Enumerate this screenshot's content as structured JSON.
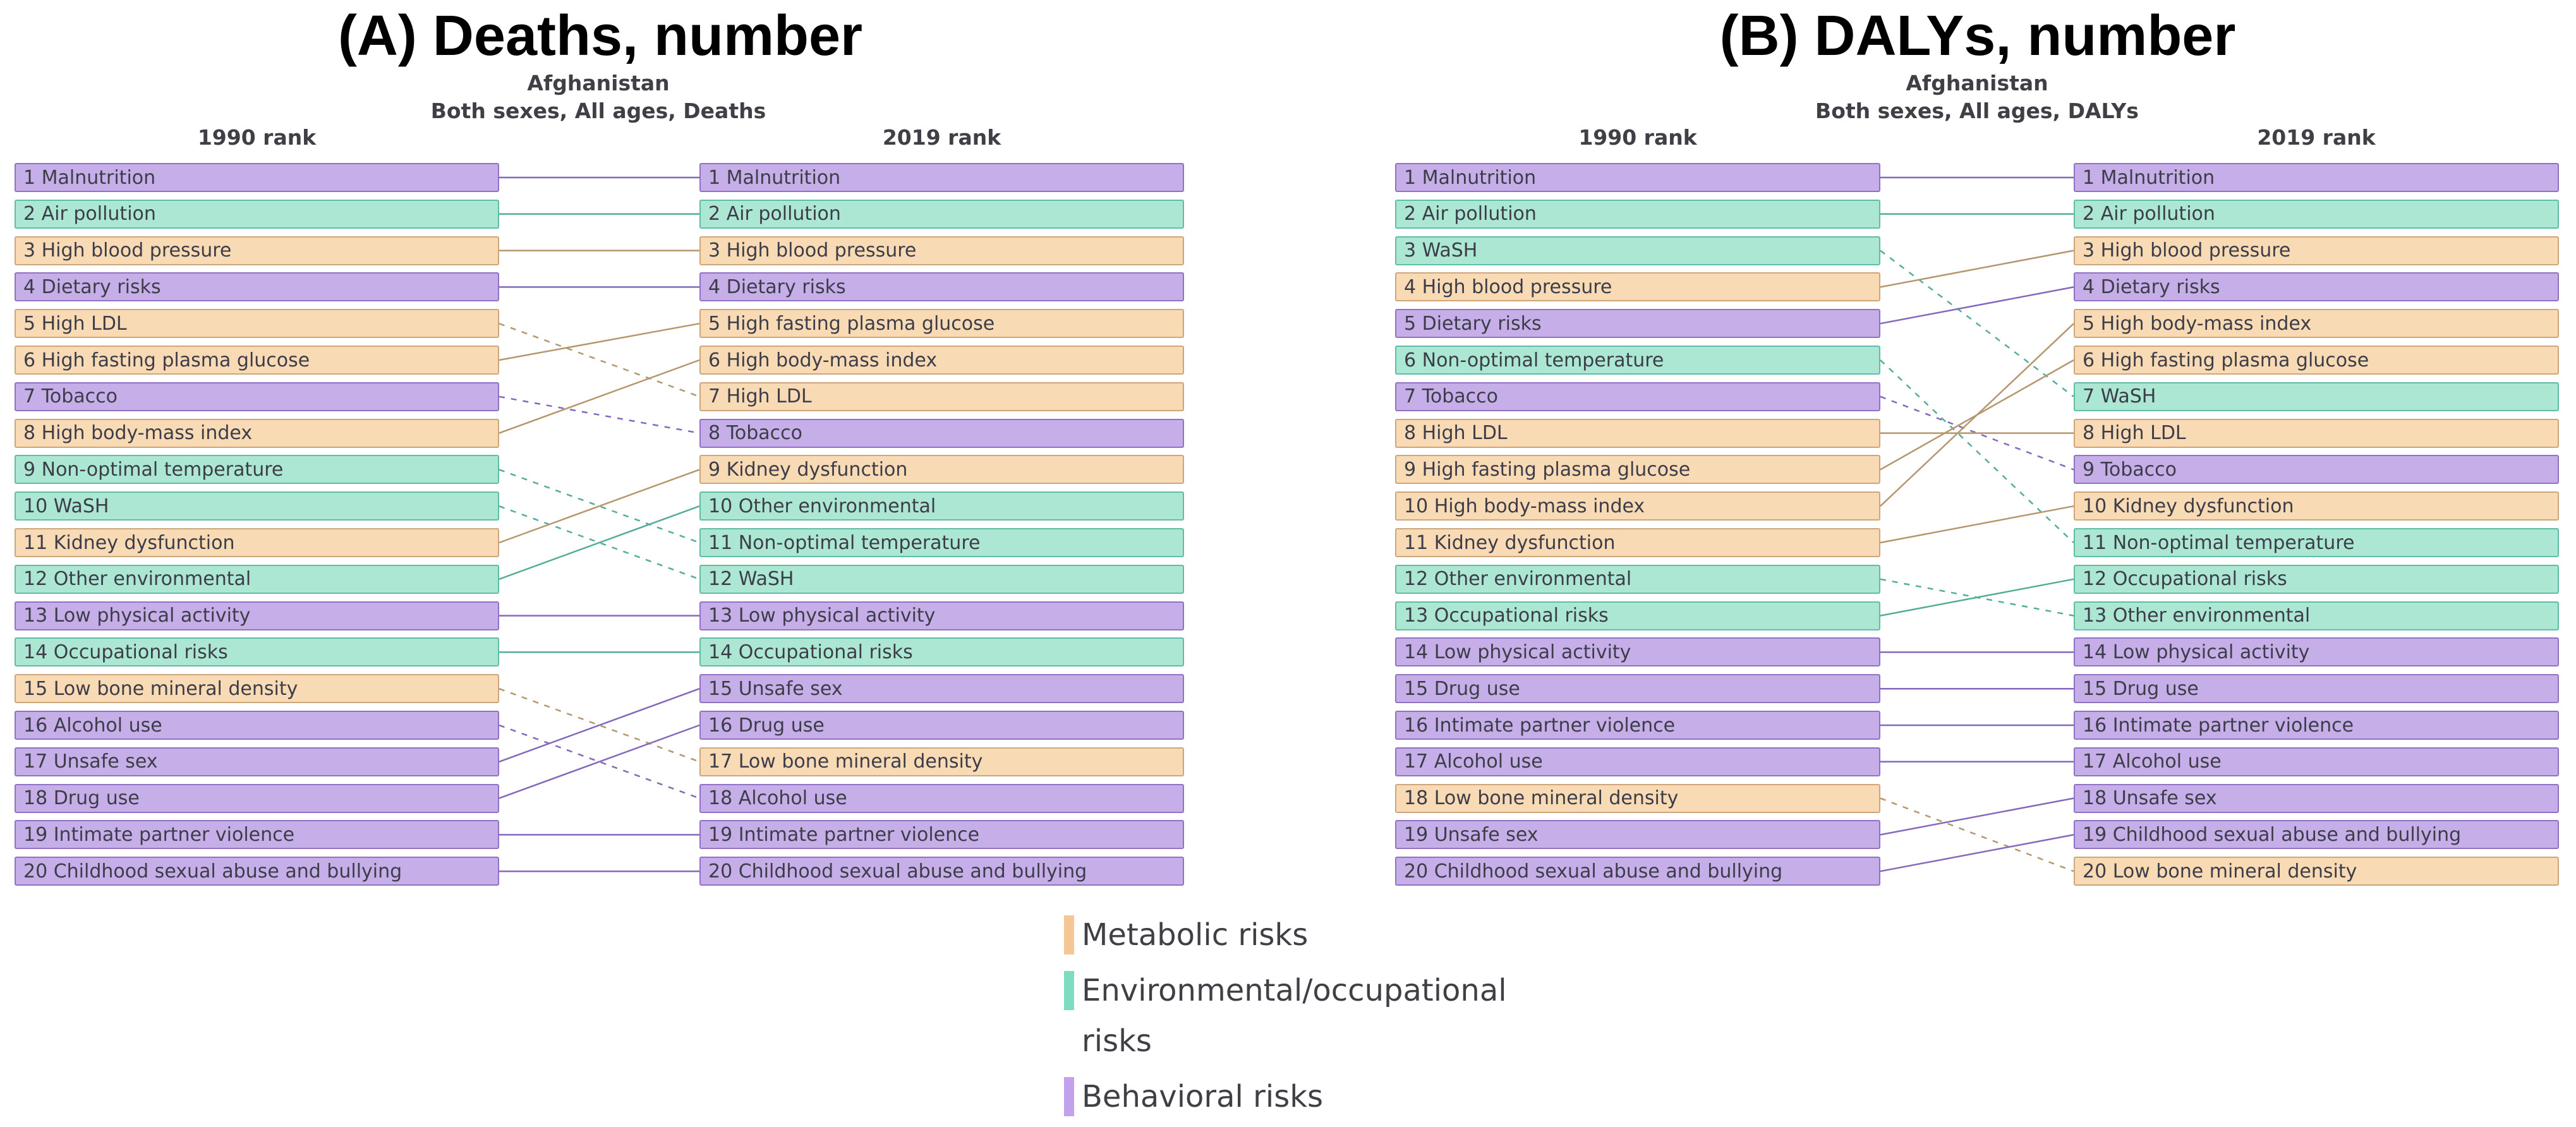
{
  "chart_data": [
    {
      "type": "rank-change-slopegraph",
      "panel_title": "(A) Deaths, number",
      "location": "Afghanistan",
      "subtitle": "Both sexes, All ages, Deaths",
      "col_left_header": "1990 rank",
      "col_right_header": "2019 rank",
      "left_ranks": [
        {
          "rank": 1,
          "label": "Malnutrition",
          "category": "behavioral"
        },
        {
          "rank": 2,
          "label": "Air pollution",
          "category": "environmental"
        },
        {
          "rank": 3,
          "label": "High blood pressure",
          "category": "metabolic"
        },
        {
          "rank": 4,
          "label": "Dietary risks",
          "category": "behavioral"
        },
        {
          "rank": 5,
          "label": "High LDL",
          "category": "metabolic"
        },
        {
          "rank": 6,
          "label": "High fasting plasma glucose",
          "category": "metabolic"
        },
        {
          "rank": 7,
          "label": "Tobacco",
          "category": "behavioral"
        },
        {
          "rank": 8,
          "label": "High body-mass index",
          "category": "metabolic"
        },
        {
          "rank": 9,
          "label": "Non-optimal temperature",
          "category": "environmental"
        },
        {
          "rank": 10,
          "label": "WaSH",
          "category": "environmental"
        },
        {
          "rank": 11,
          "label": "Kidney dysfunction",
          "category": "metabolic"
        },
        {
          "rank": 12,
          "label": "Other environmental",
          "category": "environmental"
        },
        {
          "rank": 13,
          "label": "Low physical activity",
          "category": "behavioral"
        },
        {
          "rank": 14,
          "label": "Occupational risks",
          "category": "environmental"
        },
        {
          "rank": 15,
          "label": "Low bone mineral density",
          "category": "metabolic"
        },
        {
          "rank": 16,
          "label": "Alcohol use",
          "category": "behavioral"
        },
        {
          "rank": 17,
          "label": "Unsafe sex",
          "category": "behavioral"
        },
        {
          "rank": 18,
          "label": "Drug use",
          "category": "behavioral"
        },
        {
          "rank": 19,
          "label": "Intimate partner violence",
          "category": "behavioral"
        },
        {
          "rank": 20,
          "label": "Childhood sexual abuse and bullying",
          "category": "behavioral"
        }
      ],
      "right_ranks": [
        {
          "rank": 1,
          "label": "Malnutrition",
          "category": "behavioral"
        },
        {
          "rank": 2,
          "label": "Air pollution",
          "category": "environmental"
        },
        {
          "rank": 3,
          "label": "High blood pressure",
          "category": "metabolic"
        },
        {
          "rank": 4,
          "label": "Dietary risks",
          "category": "behavioral"
        },
        {
          "rank": 5,
          "label": "High fasting plasma glucose",
          "category": "metabolic"
        },
        {
          "rank": 6,
          "label": "High body-mass index",
          "category": "metabolic"
        },
        {
          "rank": 7,
          "label": "High LDL",
          "category": "metabolic"
        },
        {
          "rank": 8,
          "label": "Tobacco",
          "category": "behavioral"
        },
        {
          "rank": 9,
          "label": "Kidney dysfunction",
          "category": "metabolic"
        },
        {
          "rank": 10,
          "label": "Other environmental",
          "category": "environmental"
        },
        {
          "rank": 11,
          "label": "Non-optimal temperature",
          "category": "environmental"
        },
        {
          "rank": 12,
          "label": "WaSH",
          "category": "environmental"
        },
        {
          "rank": 13,
          "label": "Low physical activity",
          "category": "behavioral"
        },
        {
          "rank": 14,
          "label": "Occupational risks",
          "category": "environmental"
        },
        {
          "rank": 15,
          "label": "Unsafe sex",
          "category": "behavioral"
        },
        {
          "rank": 16,
          "label": "Drug use",
          "category": "behavioral"
        },
        {
          "rank": 17,
          "label": "Low bone mineral density",
          "category": "metabolic"
        },
        {
          "rank": 18,
          "label": "Alcohol use",
          "category": "behavioral"
        },
        {
          "rank": 19,
          "label": "Intimate partner violence",
          "category": "behavioral"
        },
        {
          "rank": 20,
          "label": "Childhood sexual abuse and bullying",
          "category": "behavioral"
        }
      ]
    },
    {
      "type": "rank-change-slopegraph",
      "panel_title": "(B) DALYs, number",
      "location": "Afghanistan",
      "subtitle": "Both sexes, All ages, DALYs",
      "col_left_header": "1990 rank",
      "col_right_header": "2019 rank",
      "left_ranks": [
        {
          "rank": 1,
          "label": "Malnutrition",
          "category": "behavioral"
        },
        {
          "rank": 2,
          "label": "Air pollution",
          "category": "environmental"
        },
        {
          "rank": 3,
          "label": "WaSH",
          "category": "environmental"
        },
        {
          "rank": 4,
          "label": "High blood pressure",
          "category": "metabolic"
        },
        {
          "rank": 5,
          "label": "Dietary risks",
          "category": "behavioral"
        },
        {
          "rank": 6,
          "label": "Non-optimal temperature",
          "category": "environmental"
        },
        {
          "rank": 7,
          "label": "Tobacco",
          "category": "behavioral"
        },
        {
          "rank": 8,
          "label": "High LDL",
          "category": "metabolic"
        },
        {
          "rank": 9,
          "label": "High fasting plasma glucose",
          "category": "metabolic"
        },
        {
          "rank": 10,
          "label": "High body-mass index",
          "category": "metabolic"
        },
        {
          "rank": 11,
          "label": "Kidney dysfunction",
          "category": "metabolic"
        },
        {
          "rank": 12,
          "label": "Other environmental",
          "category": "environmental"
        },
        {
          "rank": 13,
          "label": "Occupational risks",
          "category": "environmental"
        },
        {
          "rank": 14,
          "label": "Low physical activity",
          "category": "behavioral"
        },
        {
          "rank": 15,
          "label": "Drug use",
          "category": "behavioral"
        },
        {
          "rank": 16,
          "label": "Intimate partner violence",
          "category": "behavioral"
        },
        {
          "rank": 17,
          "label": "Alcohol use",
          "category": "behavioral"
        },
        {
          "rank": 18,
          "label": "Low bone mineral density",
          "category": "metabolic"
        },
        {
          "rank": 19,
          "label": "Unsafe sex",
          "category": "behavioral"
        },
        {
          "rank": 20,
          "label": "Childhood sexual abuse and bullying",
          "category": "behavioral"
        }
      ],
      "right_ranks": [
        {
          "rank": 1,
          "label": "Malnutrition",
          "category": "behavioral"
        },
        {
          "rank": 2,
          "label": "Air pollution",
          "category": "environmental"
        },
        {
          "rank": 3,
          "label": "High blood pressure",
          "category": "metabolic"
        },
        {
          "rank": 4,
          "label": "Dietary risks",
          "category": "behavioral"
        },
        {
          "rank": 5,
          "label": "High body-mass index",
          "category": "metabolic"
        },
        {
          "rank": 6,
          "label": "High fasting plasma glucose",
          "category": "metabolic"
        },
        {
          "rank": 7,
          "label": "WaSH",
          "category": "environmental"
        },
        {
          "rank": 8,
          "label": "High LDL",
          "category": "metabolic"
        },
        {
          "rank": 9,
          "label": "Tobacco",
          "category": "behavioral"
        },
        {
          "rank": 10,
          "label": "Kidney dysfunction",
          "category": "metabolic"
        },
        {
          "rank": 11,
          "label": "Non-optimal temperature",
          "category": "environmental"
        },
        {
          "rank": 12,
          "label": "Occupational risks",
          "category": "environmental"
        },
        {
          "rank": 13,
          "label": "Other environmental",
          "category": "environmental"
        },
        {
          "rank": 14,
          "label": "Low physical activity",
          "category": "behavioral"
        },
        {
          "rank": 15,
          "label": "Drug use",
          "category": "behavioral"
        },
        {
          "rank": 16,
          "label": "Intimate partner violence",
          "category": "behavioral"
        },
        {
          "rank": 17,
          "label": "Alcohol use",
          "category": "behavioral"
        },
        {
          "rank": 18,
          "label": "Unsafe sex",
          "category": "behavioral"
        },
        {
          "rank": 19,
          "label": "Childhood sexual abuse and bullying",
          "category": "behavioral"
        },
        {
          "rank": 20,
          "label": "Low bone mineral density",
          "category": "metabolic"
        }
      ]
    }
  ],
  "legend": {
    "items": [
      {
        "label": "Metabolic risks",
        "category": "metabolic"
      },
      {
        "label": "Environmental/occupational risks",
        "category": "environmental"
      },
      {
        "label": "Behavioral risks",
        "category": "behavioral"
      }
    ]
  },
  "colors": {
    "metabolic": {
      "fill": "#f8dbb5",
      "border": "#cda77b",
      "line": "#b5976e",
      "swatch": "#f6c795"
    },
    "environmental": {
      "fill": "#abe7d3",
      "border": "#5fbca6",
      "line": "#55ad99",
      "swatch": "#7edcc3"
    },
    "behavioral": {
      "fill": "#c6afe9",
      "border": "#9172c2",
      "line": "#8468bd",
      "swatch": "#c2a1ef"
    }
  },
  "link_style_note": "solid = rank unchanged or improved, dashed = rank worsened"
}
